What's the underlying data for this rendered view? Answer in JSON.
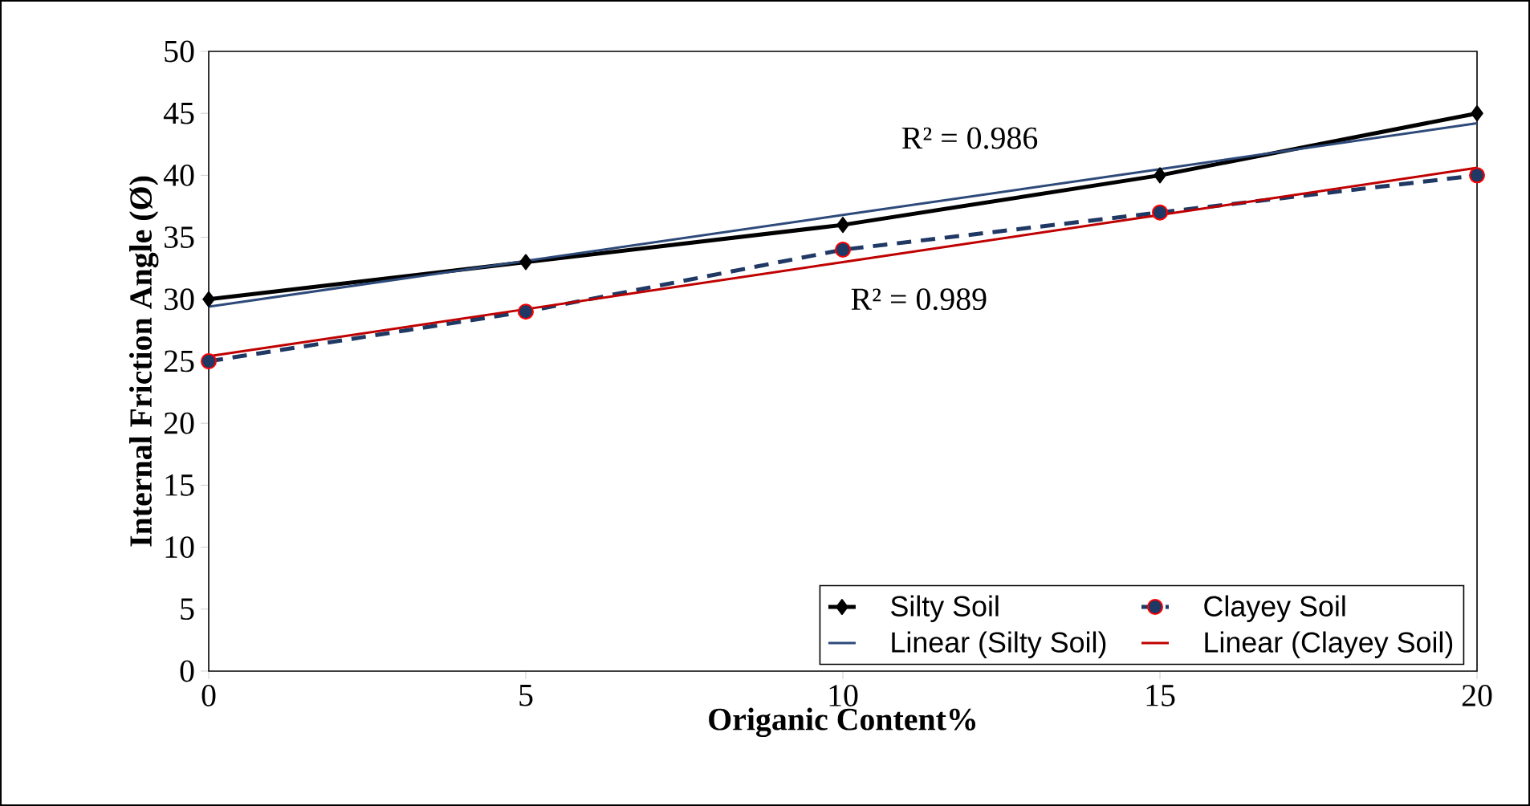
{
  "chart_data": {
    "type": "line",
    "xlabel": "Origanic Content%",
    "ylabel": "Internal Friction Angle (Ø)",
    "x": [
      0,
      5,
      10,
      15,
      20
    ],
    "series": [
      {
        "name": "Silty Soil",
        "color": "#000000",
        "values": [
          30,
          33,
          36,
          40,
          45
        ],
        "marker": "diamond",
        "line_style": "solid"
      },
      {
        "name": "Clayey Soil",
        "color": "#1f3864",
        "values": [
          25,
          29,
          34,
          37,
          40
        ],
        "marker": "circle",
        "line_style": "dashed"
      },
      {
        "name": "Linear (Silty Soil)",
        "color": "#2e4a7a",
        "values": [
          29.4,
          33.1,
          36.8,
          40.5,
          44.2
        ],
        "marker": "none",
        "line_style": "solid"
      },
      {
        "name": "Linear (Clayey Soil)",
        "color": "#c00000",
        "values": [
          25.4,
          29.2,
          33,
          36.8,
          40.6
        ],
        "marker": "none",
        "line_style": "solid"
      }
    ],
    "annotations": [
      "R² = 0.986",
      "R² = 0.989"
    ],
    "xlim": [
      0,
      20
    ],
    "xticks": [
      0,
      5,
      10,
      15,
      20
    ],
    "ylim": [
      0,
      50
    ],
    "yticks": [
      0,
      5,
      10,
      15,
      20,
      25,
      30,
      35,
      40,
      45,
      50
    ],
    "grid": false,
    "legend": "bottom right"
  }
}
